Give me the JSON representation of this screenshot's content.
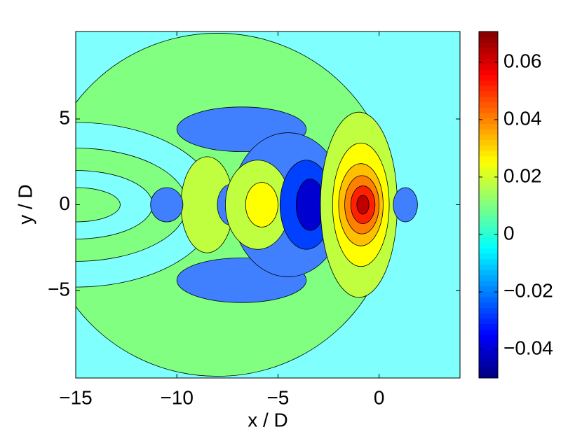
{
  "chart_data": {
    "type": "contour",
    "x_label": "x / D",
    "y_label": "y / D",
    "xlim": [
      -15,
      4
    ],
    "ylim": [
      -10.1,
      10.1
    ],
    "xticks": [
      {
        "value": -15,
        "label": "−15"
      },
      {
        "value": -10,
        "label": "−10"
      },
      {
        "value": -5,
        "label": "−5"
      },
      0
    ],
    "yticks": [
      {
        "value": -5,
        "label": "−5"
      },
      0,
      5
    ],
    "background_color": "#80ffff",
    "regions": [
      {
        "x": -8,
        "y": 0,
        "rx": 8.7,
        "ry": 10,
        "level": 0,
        "color": "#80ff80"
      },
      {
        "x": -15,
        "y": 0,
        "rx": 7,
        "ry": 4.8,
        "level": -0.005,
        "color": "#80ffff"
      },
      {
        "x": -15,
        "y": 0,
        "rx": 5.5,
        "ry": 3.3,
        "level": 0,
        "color": "#80ff80"
      },
      {
        "x": -15,
        "y": 0,
        "rx": 3.8,
        "ry": 2,
        "level": -0.005,
        "color": "#80ffff"
      },
      {
        "x": -15,
        "y": 0,
        "rx": 2.2,
        "ry": 1,
        "level": 0,
        "color": "#80ff80"
      },
      {
        "x": -6.8,
        "y": 4.4,
        "rx": 3.2,
        "ry": 1.3,
        "level": -0.02,
        "color": "#4080ff"
      },
      {
        "x": -6.8,
        "y": -4.4,
        "rx": 3.2,
        "ry": 1.3,
        "level": -0.02,
        "color": "#4080ff"
      },
      {
        "x": -8.5,
        "y": 0,
        "rx": 1.3,
        "ry": 2.8,
        "level": 0.01,
        "color": "#c0ff40"
      },
      {
        "x": -10.5,
        "y": 0,
        "rx": 0.8,
        "ry": 1,
        "level": -0.02,
        "color": "#4080ff"
      },
      {
        "x": -7.3,
        "y": 0,
        "rx": 0.7,
        "ry": 1.2,
        "level": -0.02,
        "color": "#4080ff"
      },
      {
        "x": -4.5,
        "y": 0,
        "rx": 2.8,
        "ry": 4.2,
        "level": -0.02,
        "color": "#4080ff"
      },
      {
        "x": -6,
        "y": 0,
        "rx": 1.6,
        "ry": 2.6,
        "level": 0.01,
        "color": "#c0ff40"
      },
      {
        "x": -5.8,
        "y": 0,
        "rx": 0.8,
        "ry": 1.3,
        "level": 0.02,
        "color": "#ffff00"
      },
      {
        "x": -3.6,
        "y": 0,
        "rx": 1.3,
        "ry": 2.6,
        "level": -0.03,
        "color": "#0040ff"
      },
      {
        "x": -3.4,
        "y": 0,
        "rx": 0.7,
        "ry": 1.5,
        "level": -0.04,
        "color": "#0000d0"
      },
      {
        "x": -1,
        "y": 0,
        "rx": 1.9,
        "ry": 5.4,
        "level": 0.01,
        "color": "#c0ff40"
      },
      {
        "x": -0.9,
        "y": 0,
        "rx": 1.4,
        "ry": 3.6,
        "level": 0.02,
        "color": "#ffff00"
      },
      {
        "x": -0.9,
        "y": 0,
        "rx": 1.1,
        "ry": 2.4,
        "level": 0.03,
        "color": "#ffc000"
      },
      {
        "x": -0.85,
        "y": 0,
        "rx": 0.85,
        "ry": 1.7,
        "level": 0.04,
        "color": "#ff8000"
      },
      {
        "x": -0.8,
        "y": 0,
        "rx": 0.6,
        "ry": 1.1,
        "level": 0.05,
        "color": "#ff2000"
      },
      {
        "x": -0.8,
        "y": 0,
        "rx": 0.3,
        "ry": 0.55,
        "level": 0.06,
        "color": "#c00000"
      },
      {
        "x": 1.3,
        "y": 0,
        "rx": 0.6,
        "ry": 1,
        "level": -0.02,
        "color": "#4080ff"
      }
    ],
    "colorbar": {
      "lim": [
        -0.05,
        0.0707
      ],
      "ticks": [
        {
          "value": -0.04,
          "label": "−0.04"
        },
        {
          "value": -0.02,
          "label": "−0.02"
        },
        0,
        0.02,
        0.04,
        0.06
      ]
    }
  }
}
